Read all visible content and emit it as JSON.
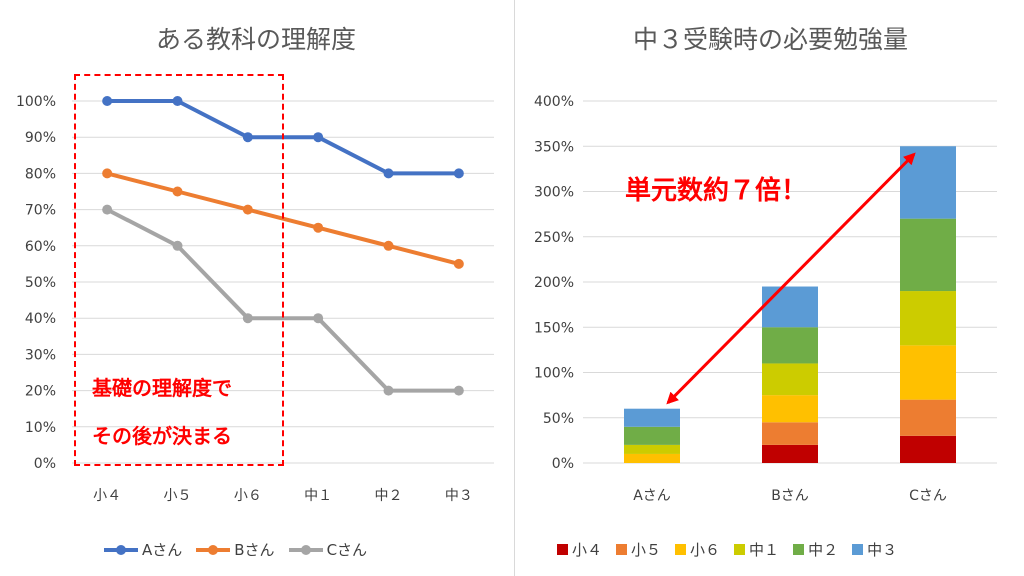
{
  "chart_data": [
    {
      "type": "line",
      "title": "ある教科の理解度",
      "categories": [
        "小４",
        "小５",
        "小６",
        "中１",
        "中２",
        "中３"
      ],
      "y_ticks": [
        "0%",
        "10%",
        "20%",
        "30%",
        "40%",
        "50%",
        "60%",
        "70%",
        "80%",
        "90%",
        "100%"
      ],
      "ylim": [
        0,
        100
      ],
      "grid": true,
      "legend_position": "bottom",
      "series": [
        {
          "name": "Aさん",
          "color": "#4472c4",
          "values": [
            100,
            100,
            90,
            90,
            80,
            80
          ]
        },
        {
          "name": "Bさん",
          "color": "#ed7d31",
          "values": [
            80,
            75,
            70,
            65,
            60,
            55
          ]
        },
        {
          "name": "Cさん",
          "color": "#a5a5a5",
          "values": [
            70,
            60,
            40,
            40,
            20,
            20
          ]
        }
      ],
      "annotation": {
        "line1": "基礎の理解度で",
        "line2": "その後が決まる",
        "color": "#ff0000"
      }
    },
    {
      "type": "bar",
      "stacked": true,
      "title": "中３受験時の必要勉強量",
      "categories": [
        "Aさん",
        "Bさん",
        "Cさん"
      ],
      "y_ticks": [
        "0%",
        "50%",
        "100%",
        "150%",
        "200%",
        "250%",
        "300%",
        "350%",
        "400%"
      ],
      "ylim": [
        0,
        400
      ],
      "grid": true,
      "legend_position": "bottom",
      "series": [
        {
          "name": "小４",
          "color": "#c00000",
          "values": [
            0,
            20,
            30
          ]
        },
        {
          "name": "小５",
          "color": "#ed7d31",
          "values": [
            0,
            25,
            40
          ]
        },
        {
          "name": "小６",
          "color": "#ffc000",
          "values": [
            10,
            30,
            60
          ]
        },
        {
          "name": "中１",
          "color": "#cccc00",
          "values": [
            10,
            35,
            60
          ]
        },
        {
          "name": "中２",
          "color": "#70ad47",
          "values": [
            20,
            40,
            80
          ]
        },
        {
          "name": "中３",
          "color": "#5b9bd5",
          "values": [
            20,
            45,
            80
          ]
        }
      ],
      "annotation": {
        "text": "単元数約７倍！",
        "color": "#ff0000"
      }
    }
  ]
}
